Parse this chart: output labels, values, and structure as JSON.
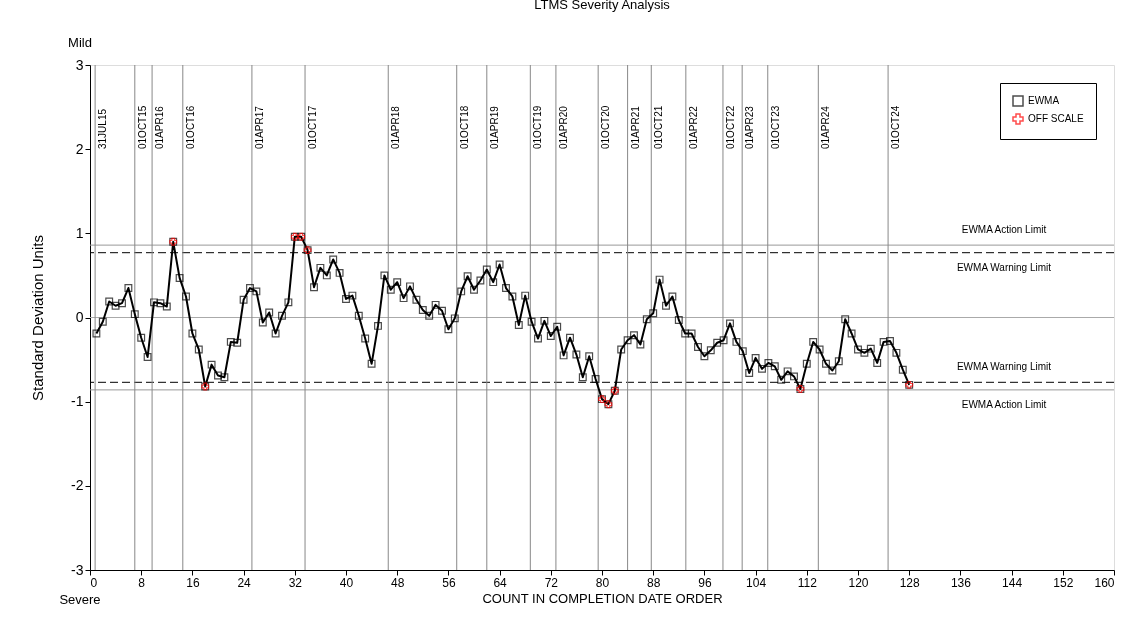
{
  "chart_data": {
    "type": "line",
    "title": "LTMS Severity Analysis",
    "xlabel": "COUNT IN COMPLETION DATE ORDER",
    "ylabel": "Standard Deviation Units",
    "annotations": [
      "Mild",
      "Severe"
    ],
    "xlim": [
      0,
      160
    ],
    "xticks": [
      0,
      8,
      16,
      24,
      32,
      40,
      48,
      56,
      64,
      72,
      80,
      88,
      96,
      104,
      112,
      120,
      128,
      136,
      144,
      152,
      160
    ],
    "ylim": [
      -3,
      3
    ],
    "yticks": [
      -3,
      -2,
      -1,
      0,
      1,
      2,
      3
    ],
    "grid": false,
    "legend": "top right",
    "series": [
      {
        "name": "EWMA",
        "marker": "square",
        "color": "#000000",
        "x": [
          1,
          2,
          3,
          4,
          5,
          6,
          7,
          8,
          9,
          10,
          11,
          12,
          13,
          14,
          15,
          16,
          17,
          18,
          19,
          20,
          21,
          22,
          23,
          24,
          25,
          26,
          27,
          28,
          29,
          30,
          31,
          32,
          33,
          34,
          35,
          36,
          37,
          38,
          39,
          40,
          41,
          42,
          43,
          44,
          45,
          46,
          47,
          48,
          49,
          50,
          51,
          52,
          53,
          54,
          55,
          56,
          57,
          58,
          59,
          60,
          61,
          62,
          63,
          64,
          65,
          66,
          67,
          68,
          69,
          70,
          71,
          72,
          73,
          74,
          75,
          76,
          77,
          78,
          79,
          80,
          81,
          82,
          83,
          84,
          85,
          86,
          87,
          88,
          89,
          90,
          91,
          92,
          93,
          94,
          95,
          96,
          97,
          98,
          99,
          100,
          101,
          102,
          103,
          104,
          105,
          106,
          107,
          108,
          109,
          110,
          111,
          112,
          113,
          114,
          115,
          116,
          117,
          118,
          119,
          120,
          121,
          122,
          123,
          124,
          125,
          126,
          127,
          128
        ],
        "values": [
          -0.19,
          -0.05,
          0.19,
          0.14,
          0.17,
          0.35,
          0.04,
          -0.24,
          -0.47,
          0.18,
          0.17,
          0.13,
          0.9,
          0.47,
          0.25,
          -0.19,
          -0.38,
          -0.82,
          -0.56,
          -0.69,
          -0.71,
          -0.29,
          -0.3,
          0.21,
          0.35,
          0.31,
          -0.06,
          0.06,
          -0.19,
          0.02,
          0.18,
          0.96,
          0.96,
          0.8,
          0.36,
          0.59,
          0.5,
          0.69,
          0.53,
          0.22,
          0.26,
          0.02,
          -0.25,
          -0.55,
          -0.1,
          0.5,
          0.33,
          0.42,
          0.23,
          0.37,
          0.21,
          0.09,
          0.02,
          0.15,
          0.08,
          -0.14,
          -0.01,
          0.31,
          0.49,
          0.33,
          0.44,
          0.57,
          0.42,
          0.63,
          0.35,
          0.25,
          -0.09,
          0.26,
          -0.05,
          -0.25,
          -0.04,
          -0.22,
          -0.11,
          -0.45,
          -0.24,
          -0.44,
          -0.71,
          -0.46,
          -0.73,
          -0.97,
          -1.03,
          -0.87,
          -0.38,
          -0.27,
          -0.21,
          -0.32,
          -0.02,
          0.05,
          0.45,
          0.14,
          0.25,
          -0.03,
          -0.19,
          -0.19,
          -0.35,
          -0.46,
          -0.39,
          -0.3,
          -0.27,
          -0.07,
          -0.29,
          -0.4,
          -0.66,
          -0.48,
          -0.61,
          -0.54,
          -0.58,
          -0.74,
          -0.64,
          -0.7,
          -0.85,
          -0.55,
          -0.29,
          -0.38,
          -0.55,
          -0.63,
          -0.52,
          -0.02,
          -0.19,
          -0.38,
          -0.42,
          -0.37,
          -0.54,
          -0.29,
          -0.28,
          -0.42,
          -0.62,
          -0.8
        ]
      },
      {
        "name": "OFF SCALE",
        "type": "scatter",
        "marker": "cross",
        "color": "#ff0000",
        "x": [
          13,
          18,
          32,
          33,
          34,
          80,
          81,
          82,
          111,
          128
        ],
        "values": [
          0.9,
          -0.82,
          0.96,
          0.96,
          0.8,
          -0.97,
          -1.03,
          -0.87,
          -0.85,
          -0.8
        ]
      }
    ],
    "ref_lines": [
      {
        "axis": "y",
        "value": 0,
        "label": null,
        "color": "#aaaaaa",
        "line_style": "solid"
      },
      {
        "axis": "y",
        "value": 0.86,
        "label": "EWMA Action Limit",
        "color": "#999999",
        "line_style": "solid"
      },
      {
        "axis": "y",
        "value": 0.77,
        "label": "EWMA Warning Limit",
        "color": "#000000",
        "line_style": "dashed"
      },
      {
        "axis": "y",
        "value": -0.77,
        "label": "EWMA Warning Limit",
        "color": "#000000",
        "line_style": "dashed"
      },
      {
        "axis": "y",
        "value": -0.86,
        "label": "EWMA Action Limit",
        "color": "#999999",
        "line_style": "solid"
      },
      {
        "axis": "x",
        "value": 0.8,
        "label": "31JUL15",
        "color": "#888888"
      },
      {
        "axis": "x",
        "value": 7,
        "label": "01OCT15",
        "color": "#888888"
      },
      {
        "axis": "x",
        "value": 9.7,
        "label": "01APR16",
        "color": "#888888"
      },
      {
        "axis": "x",
        "value": 14.5,
        "label": "01OCT16",
        "color": "#888888"
      },
      {
        "axis": "x",
        "value": 25.3,
        "label": "01APR17",
        "color": "#888888"
      },
      {
        "axis": "x",
        "value": 33.6,
        "label": "01OCT17",
        "color": "#888888"
      },
      {
        "axis": "x",
        "value": 46.6,
        "label": "01APR18",
        "color": "#888888"
      },
      {
        "axis": "x",
        "value": 57.3,
        "label": "01OCT18",
        "color": "#888888"
      },
      {
        "axis": "x",
        "value": 62,
        "label": "01APR19",
        "color": "#888888"
      },
      {
        "axis": "x",
        "value": 68.8,
        "label": "01OCT19",
        "color": "#888888"
      },
      {
        "axis": "x",
        "value": 72.8,
        "label": "01APR20",
        "color": "#888888"
      },
      {
        "axis": "x",
        "value": 79.4,
        "label": "01OCT20",
        "color": "#888888"
      },
      {
        "axis": "x",
        "value": 84,
        "label": "01APR21",
        "color": "#888888"
      },
      {
        "axis": "x",
        "value": 87.7,
        "label": "01OCT21",
        "color": "#888888"
      },
      {
        "axis": "x",
        "value": 93.1,
        "label": "01APR22",
        "color": "#888888"
      },
      {
        "axis": "x",
        "value": 98.9,
        "label": "01OCT22",
        "color": "#888888"
      },
      {
        "axis": "x",
        "value": 101.9,
        "label": "01APR23",
        "color": "#888888"
      },
      {
        "axis": "x",
        "value": 105.9,
        "label": "01OCT23",
        "color": "#888888"
      },
      {
        "axis": "x",
        "value": 113.8,
        "label": "01APR24",
        "color": "#888888"
      },
      {
        "axis": "x",
        "value": 124.7,
        "label": "01OCT24",
        "color": "#888888"
      }
    ]
  }
}
